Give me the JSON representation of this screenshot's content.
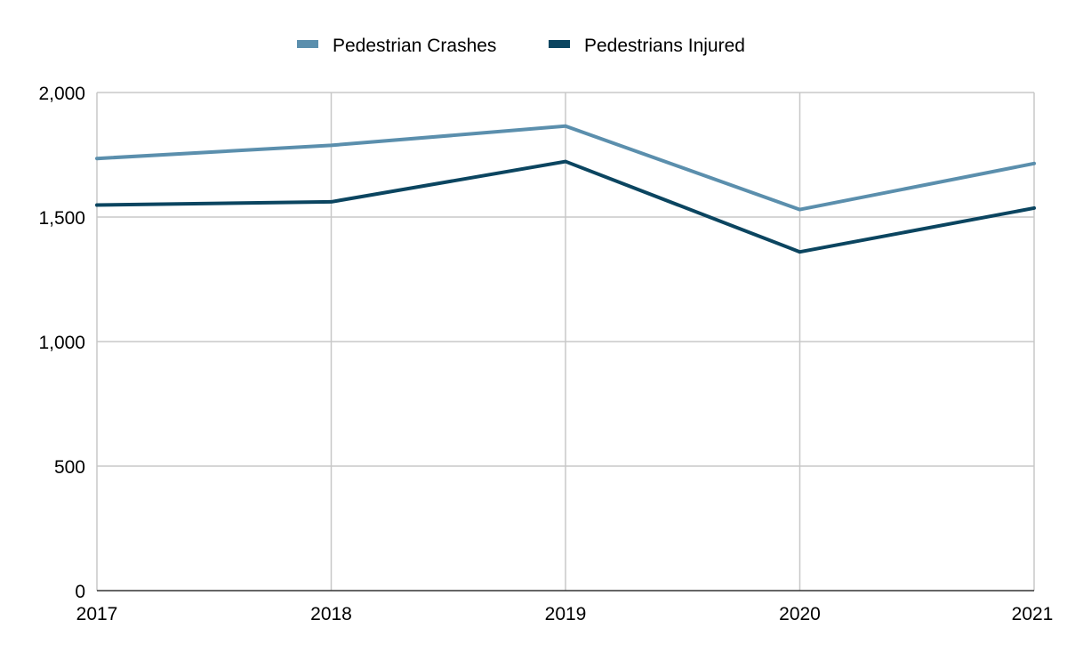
{
  "chart_data": {
    "type": "line",
    "title": "",
    "xlabel": "",
    "ylabel": "",
    "x": [
      "2017",
      "2018",
      "2019",
      "2020",
      "2021"
    ],
    "ylim": [
      0,
      2000
    ],
    "yticks": [
      0,
      500,
      1000,
      1500,
      2000
    ],
    "ytick_labels": [
      "0",
      "500",
      "1,000",
      "1,500",
      "2,000"
    ],
    "grid": true,
    "legend_position": "top-center",
    "series": [
      {
        "name": "Pedestrian Crashes",
        "color": "#5b8fad",
        "values": [
          1735,
          1788,
          1865,
          1530,
          1715
        ]
      },
      {
        "name": "Pedestrians Injured",
        "color": "#0b4560",
        "values": [
          1548,
          1561,
          1723,
          1360,
          1536
        ]
      }
    ]
  }
}
